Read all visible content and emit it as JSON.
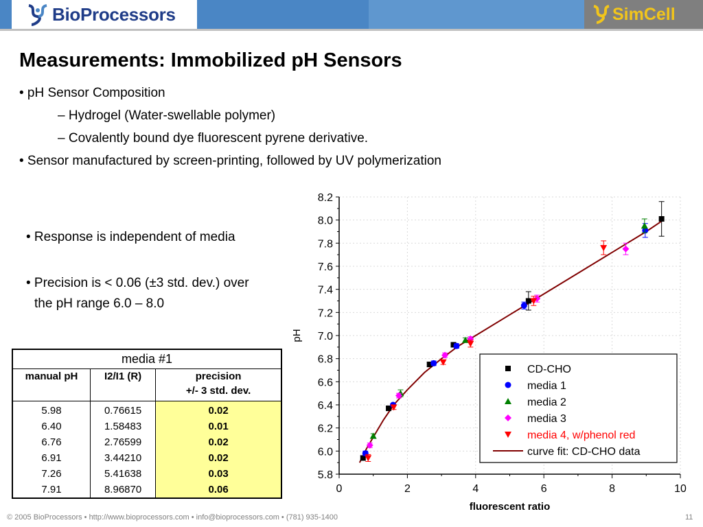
{
  "header": {
    "left_logo": "BioProcessors",
    "right_logo": "SimCell",
    "colors": {
      "blue": "#4a86c5",
      "gray": "#7f7f7f",
      "brand_navy": "#1f3c88",
      "simcell_yellow": "#f2c51b"
    }
  },
  "title": "Measurements:  Immobilized pH Sensors",
  "bullets": {
    "b1": "• pH Sensor Composition",
    "b1a": "–  Hydrogel (Water-swellable polymer)",
    "b1b": "–  Covalently bound dye fluorescent pyrene derivative.",
    "b2": "• Sensor manufactured by screen-printing, followed by UV polymerization"
  },
  "side": {
    "line1": "• Response is independent of media",
    "line2": "• Precision is < 0.06 (±3 std. dev.) over",
    "line3": "the pH range 6.0 – 8.0"
  },
  "table": {
    "caption": "media #1",
    "headers": [
      "manual pH",
      "I2/I1 (R)",
      "precision",
      "+/- 3 std. dev."
    ],
    "col_manual_ph": [
      "5.98",
      "6.40",
      "6.76",
      "6.91",
      "7.26",
      "7.91"
    ],
    "col_ratio": [
      "0.76615",
      "1.58483",
      "2.76599",
      "3.44210",
      "5.41638",
      "8.96870"
    ],
    "col_precision": [
      "0.02",
      "0.01",
      "0.02",
      "0.02",
      "0.03",
      "0.06"
    ],
    "highlight_color": "#ffff99"
  },
  "footer": "© 2005 BioProcessors • http://www.bioprocessors.com • info@bioprocessors.com • (781) 935-1400",
  "page_number": "11",
  "chart_data": {
    "type": "scatter",
    "xlabel": "fluorescent ratio",
    "ylabel": "pH",
    "xlim": [
      0,
      10
    ],
    "ylim": [
      5.8,
      8.2
    ],
    "xticks": [
      "0",
      "2",
      "4",
      "6",
      "8",
      "10"
    ],
    "yticks": [
      "5.8",
      "6.0",
      "6.2",
      "6.4",
      "6.6",
      "6.8",
      "7.0",
      "7.2",
      "7.4",
      "7.6",
      "7.8",
      "8.0",
      "8.2"
    ],
    "grid": true,
    "legend_position": "bottom-right",
    "series": [
      {
        "name": "CD-CHO",
        "marker": "square",
        "color": "#000000",
        "points": [
          [
            0.7,
            5.94
          ],
          [
            1.45,
            6.37
          ],
          [
            2.65,
            6.75
          ],
          [
            3.35,
            6.92
          ],
          [
            5.55,
            7.3
          ],
          [
            9.45,
            8.01
          ]
        ],
        "err": [
          0.02,
          0.02,
          0.02,
          0.02,
          0.08,
          0.15
        ]
      },
      {
        "name": "media 1",
        "marker": "circle",
        "color": "#0000ff",
        "points": [
          [
            0.77,
            5.98
          ],
          [
            1.58,
            6.4
          ],
          [
            2.77,
            6.76
          ],
          [
            3.44,
            6.91
          ],
          [
            5.42,
            7.26
          ],
          [
            8.97,
            7.91
          ]
        ],
        "err": [
          0.02,
          0.01,
          0.02,
          0.02,
          0.03,
          0.06
        ]
      },
      {
        "name": "media 2",
        "marker": "triangle-up",
        "color": "#008000",
        "points": [
          [
            1.0,
            6.13
          ],
          [
            1.8,
            6.5
          ],
          [
            3.7,
            6.96
          ],
          [
            8.95,
            7.95
          ]
        ],
        "err": [
          0.02,
          0.03,
          0.02,
          0.06
        ]
      },
      {
        "name": "media 3",
        "marker": "diamond",
        "color": "#ff00ff",
        "points": [
          [
            0.9,
            6.05
          ],
          [
            1.75,
            6.48
          ],
          [
            3.1,
            6.83
          ],
          [
            3.85,
            6.97
          ],
          [
            5.8,
            7.32
          ],
          [
            8.4,
            7.75
          ]
        ],
        "err": [
          0.02,
          0.02,
          0.02,
          0.02,
          0.03,
          0.05
        ]
      },
      {
        "name": "media 4, w/phenol red",
        "marker": "triangle-down",
        "color": "#ff0000",
        "points": [
          [
            0.85,
            5.94
          ],
          [
            1.6,
            6.38
          ],
          [
            3.05,
            6.77
          ],
          [
            3.85,
            6.93
          ],
          [
            5.7,
            7.3
          ],
          [
            7.75,
            7.76
          ]
        ],
        "err": [
          0.03,
          0.02,
          0.02,
          0.03,
          0.04,
          0.06
        ]
      },
      {
        "name": "curve fit: CD-CHO data",
        "marker": "line",
        "color": "#800000",
        "points": [
          [
            0.6,
            5.9
          ],
          [
            0.8,
            6.02
          ],
          [
            1.0,
            6.12
          ],
          [
            1.3,
            6.27
          ],
          [
            1.6,
            6.4
          ],
          [
            2.0,
            6.53
          ],
          [
            2.5,
            6.68
          ],
          [
            3.0,
            6.8
          ],
          [
            3.5,
            6.91
          ],
          [
            4.0,
            7.0
          ],
          [
            5.0,
            7.18
          ],
          [
            6.0,
            7.36
          ],
          [
            7.0,
            7.54
          ],
          [
            8.0,
            7.72
          ],
          [
            9.0,
            7.9
          ],
          [
            9.5,
            8.0
          ]
        ]
      }
    ]
  }
}
